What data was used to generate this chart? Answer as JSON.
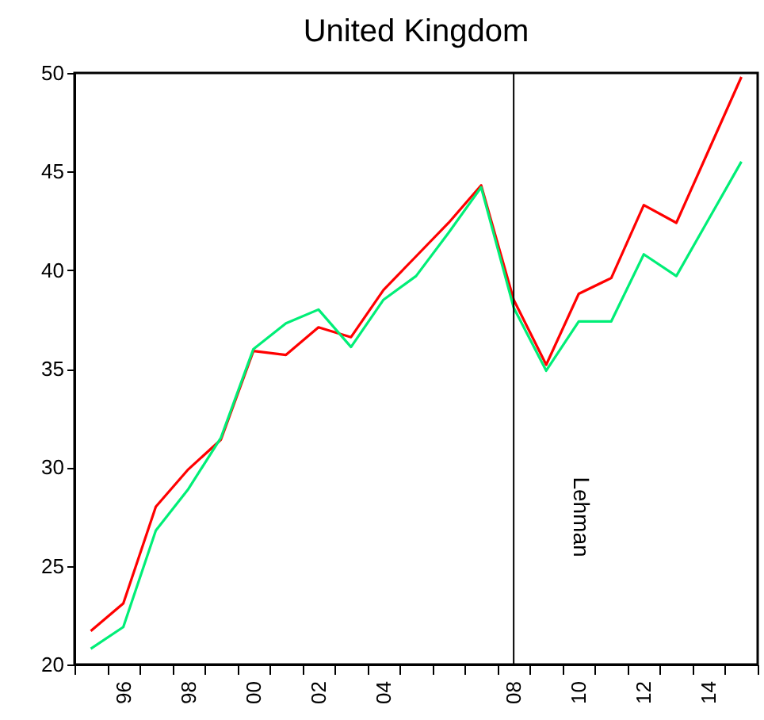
{
  "chart_data": {
    "type": "line",
    "title": "United Kingdom",
    "categories": [
      null,
      "96",
      null,
      "98",
      null,
      "00",
      null,
      "02",
      null,
      "04",
      null,
      null,
      null,
      "08",
      null,
      "10",
      null,
      "12",
      null,
      "14",
      null
    ],
    "series": [
      {
        "color": "#ff0000",
        "values": [
          21.7,
          23.1,
          28.0,
          29.9,
          31.4,
          35.9,
          35.7,
          37.1,
          36.6,
          39.0,
          40.7,
          42.4,
          44.3,
          38.5,
          35.2,
          38.8,
          39.6,
          43.3,
          42.4,
          46.1,
          49.8
        ]
      },
      {
        "color": "#00ee77",
        "values": [
          20.8,
          21.9,
          26.8,
          28.9,
          31.5,
          36.0,
          37.3,
          38.0,
          36.1,
          38.5,
          39.7,
          41.9,
          44.2,
          38.1,
          34.9,
          37.4,
          37.4,
          40.8,
          39.7,
          42.6,
          45.5
        ]
      }
    ],
    "ylim": [
      20,
      50
    ],
    "yticks": [
      20,
      25,
      30,
      35,
      40,
      45,
      50
    ],
    "grid": false,
    "legend": false,
    "ref_lines": [
      {
        "axis": "x",
        "value": "08",
        "label": "Lehman",
        "color": "#000000"
      }
    ]
  }
}
